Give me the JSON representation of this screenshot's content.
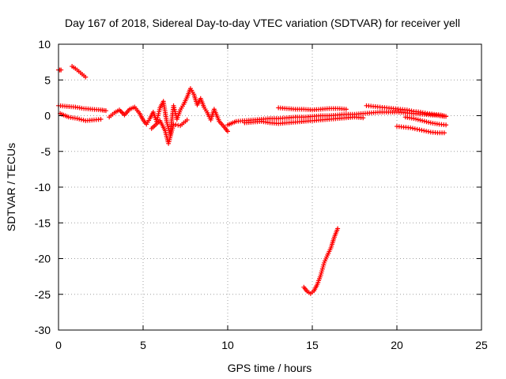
{
  "chart_data": {
    "type": "scatter",
    "title": "Day 167 of 2018, Sidereal Day-to-day VTEC variation (SDTVAR) for receiver yell",
    "xlabel": "GPS time / hours",
    "ylabel": "SDTVAR / TECUs",
    "xlim": [
      0,
      25
    ],
    "ylim": [
      -30,
      10
    ],
    "xticks": [
      0,
      5,
      10,
      15,
      20,
      25
    ],
    "yticks": [
      -30,
      -25,
      -20,
      -15,
      -10,
      -5,
      0,
      5,
      10
    ],
    "xtick_labels": [
      "0",
      "5",
      "10",
      "15",
      "20",
      "25"
    ],
    "ytick_labels": [
      "-30",
      "-25",
      "-20",
      "-15",
      "-10",
      "-5",
      "0",
      "5",
      "10"
    ],
    "grid": true,
    "marker": "+",
    "color": "#ff0000",
    "series": [
      {
        "name": "SDTVAR",
        "segments": [
          {
            "x": [
              0.0,
              0.15
            ],
            "y": [
              6.4,
              6.4
            ]
          },
          {
            "x": [
              0.8,
              1.0,
              1.2,
              1.4,
              1.6
            ],
            "y": [
              6.9,
              6.6,
              6.2,
              5.8,
              5.4
            ]
          },
          {
            "x": [
              0.0,
              0.5,
              1.0,
              1.5,
              2.0,
              2.5,
              2.8
            ],
            "y": [
              1.4,
              1.3,
              1.2,
              1.0,
              0.9,
              0.8,
              0.7
            ]
          },
          {
            "x": [
              0.1,
              0.6,
              1.1,
              1.6,
              2.1,
              2.5
            ],
            "y": [
              0.3,
              -0.2,
              -0.4,
              -0.7,
              -0.6,
              -0.5
            ]
          },
          {
            "x": [
              3.0,
              3.3,
              3.6,
              3.9,
              4.2,
              4.5,
              4.8,
              5.0,
              5.2,
              5.4,
              5.6,
              5.8,
              6.0,
              6.2,
              6.4,
              6.6,
              6.8,
              7.0,
              7.2,
              7.4,
              7.6,
              7.8,
              8.0,
              8.2,
              8.4,
              8.6,
              8.8,
              9.0,
              9.2,
              9.5,
              9.8,
              10.0
            ],
            "y": [
              -0.2,
              0.4,
              0.8,
              0.1,
              0.9,
              1.2,
              0.3,
              -0.6,
              -1.2,
              -0.4,
              0.5,
              -0.8,
              1.1,
              2.0,
              -0.9,
              -2.6,
              1.4,
              -0.5,
              0.8,
              1.6,
              2.6,
              3.8,
              3.0,
              1.5,
              2.4,
              1.2,
              0.4,
              -0.6,
              0.9,
              -0.8,
              -1.6,
              -2.2
            ]
          },
          {
            "x": [
              5.5,
              6.0,
              6.3,
              6.5,
              6.8,
              7.2,
              7.6
            ],
            "y": [
              -1.8,
              -0.7,
              -2.1,
              -3.9,
              -1.2,
              -1.4,
              -0.6
            ]
          },
          {
            "x": [
              10.0,
              10.5,
              11.0,
              11.5,
              12.0,
              12.5,
              13.0,
              13.5,
              14.0,
              14.5,
              15.0,
              15.5,
              16.0,
              16.5,
              17.0,
              17.5,
              18.0,
              18.5,
              19.0,
              19.5,
              20.0,
              20.5,
              21.0,
              21.5,
              22.0,
              22.5,
              22.8
            ],
            "y": [
              -1.3,
              -0.8,
              -0.7,
              -0.6,
              -0.5,
              -0.4,
              -0.4,
              -0.3,
              -0.2,
              -0.2,
              -0.1,
              0.0,
              0.0,
              0.1,
              0.2,
              0.2,
              0.3,
              0.4,
              0.5,
              0.5,
              0.5,
              0.4,
              0.3,
              0.2,
              0.1,
              0.0,
              -0.1
            ]
          },
          {
            "x": [
              11.0,
              11.5,
              12.0,
              12.5,
              13.0,
              13.5,
              14.0,
              14.5,
              15.0,
              15.5,
              16.0,
              16.5,
              17.0,
              17.5,
              18.0
            ],
            "y": [
              -1.0,
              -0.9,
              -0.8,
              -1.0,
              -1.1,
              -1.0,
              -0.9,
              -0.8,
              -0.7,
              -0.6,
              -0.5,
              -0.4,
              -0.3,
              -0.2,
              -0.3
            ]
          },
          {
            "x": [
              13.0,
              13.5,
              14.0,
              14.5,
              15.0,
              15.5,
              16.0,
              16.5,
              17.0
            ],
            "y": [
              1.1,
              1.0,
              0.9,
              0.9,
              0.8,
              0.9,
              1.0,
              1.0,
              0.9
            ]
          },
          {
            "x": [
              18.2,
              18.6,
              19.0,
              19.4,
              19.8,
              20.2,
              20.6,
              21.0,
              21.4,
              21.8,
              22.2,
              22.6,
              22.9
            ],
            "y": [
              1.4,
              1.3,
              1.2,
              1.1,
              1.0,
              0.9,
              0.8,
              0.6,
              0.5,
              0.3,
              0.2,
              0.1,
              -0.1
            ]
          },
          {
            "x": [
              20.0,
              20.4,
              20.8,
              21.2,
              21.6,
              22.0,
              22.4,
              22.8
            ],
            "y": [
              -1.5,
              -1.6,
              -1.7,
              -1.9,
              -2.1,
              -2.3,
              -2.4,
              -2.4
            ]
          },
          {
            "x": [
              20.5,
              21.0,
              21.5,
              22.0,
              22.5,
              22.9
            ],
            "y": [
              -0.2,
              -0.4,
              -0.7,
              -1.0,
              -1.2,
              -1.3
            ]
          },
          {
            "x": [
              14.5,
              14.7,
              14.9,
              15.1,
              15.3,
              15.5,
              15.7,
              15.9,
              16.1,
              16.3,
              16.5
            ],
            "y": [
              -24.0,
              -24.6,
              -24.9,
              -24.5,
              -23.6,
              -22.3,
              -20.6,
              -19.5,
              -18.5,
              -17.0,
              -15.8
            ]
          }
        ]
      }
    ]
  }
}
